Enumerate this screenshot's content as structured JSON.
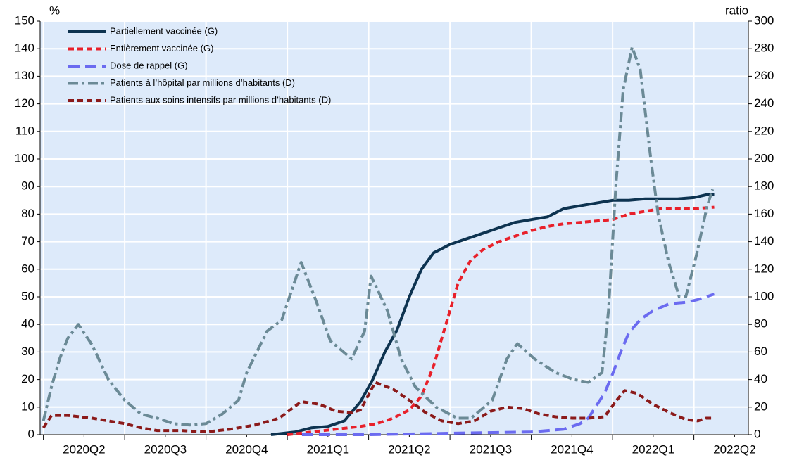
{
  "chart_data": {
    "type": "line",
    "y_label": "%",
    "y2_label": "ratio",
    "grid": true,
    "legend": "upper left",
    "xlim": [
      -0.04,
      8.67
    ],
    "xticks": [
      {
        "value": 0.5,
        "label": "2020Q2"
      },
      {
        "value": 1.5,
        "label": "2020Q3"
      },
      {
        "value": 2.5,
        "label": "2020Q4"
      },
      {
        "value": 3.5,
        "label": "2021Q1"
      },
      {
        "value": 4.5,
        "label": "2021Q2"
      },
      {
        "value": 5.5,
        "label": "2021Q3"
      },
      {
        "value": 6.5,
        "label": "2021Q4"
      },
      {
        "value": 7.5,
        "label": "2022Q1"
      },
      {
        "value": 8.5,
        "label": "2022Q2"
      }
    ],
    "ylim": [
      0,
      150
    ],
    "yticks": [
      0,
      10,
      20,
      30,
      40,
      50,
      60,
      70,
      80,
      90,
      100,
      110,
      120,
      130,
      140,
      150
    ],
    "y2lim": [
      0,
      300
    ],
    "y2ticks": [
      0,
      20,
      40,
      60,
      80,
      100,
      120,
      140,
      160,
      180,
      200,
      220,
      240,
      260,
      280,
      300
    ],
    "series": [
      {
        "name": "Partiellement vaccinée (G)",
        "color": "#0d3350",
        "dash": "solid",
        "axis": "y",
        "x": [
          2.8,
          3.1,
          3.3,
          3.5,
          3.7,
          3.9,
          4.05,
          4.2,
          4.35,
          4.5,
          4.65,
          4.8,
          5.0,
          5.2,
          5.4,
          5.6,
          5.8,
          6.0,
          6.2,
          6.4,
          6.6,
          6.8,
          7.0,
          7.2,
          7.4,
          7.6,
          7.8,
          8.0,
          8.15,
          8.25
        ],
        "values": [
          0,
          1,
          2.5,
          3,
          5,
          12,
          20,
          30,
          38,
          50,
          60,
          66,
          69,
          71,
          73,
          75,
          77,
          78,
          79,
          82,
          83,
          84,
          85,
          85,
          85.5,
          85.5,
          85.5,
          86,
          87,
          87
        ]
      },
      {
        "name": "Entièrement vaccinée (G)",
        "color": "#e8202a",
        "dash": "dash",
        "axis": "y",
        "x": [
          3.0,
          3.3,
          3.6,
          3.9,
          4.1,
          4.3,
          4.5,
          4.65,
          4.8,
          4.95,
          5.1,
          5.25,
          5.4,
          5.6,
          5.8,
          6.0,
          6.2,
          6.4,
          6.6,
          6.8,
          7.0,
          7.2,
          7.4,
          7.6,
          7.8,
          8.0,
          8.25
        ],
        "values": [
          0,
          1,
          2,
          3,
          4,
          6,
          9,
          14,
          25,
          40,
          55,
          63,
          67,
          70,
          72,
          74,
          75.5,
          76.5,
          77,
          77.5,
          78,
          80,
          81,
          82,
          82,
          82,
          82.5
        ]
      },
      {
        "name": "Dose de rappel (G)",
        "color": "#6b6bf0",
        "dash": "longdash",
        "axis": "y",
        "x": [
          3.18,
          4.0,
          5.0,
          6.0,
          6.4,
          6.6,
          6.7,
          6.9,
          7.0,
          7.1,
          7.2,
          7.35,
          7.5,
          7.7,
          7.9,
          8.05,
          8.25
        ],
        "values": [
          0,
          0,
          0.5,
          1,
          2,
          4,
          6,
          15,
          22,
          30,
          37,
          42,
          45,
          47.5,
          48,
          49,
          51
        ]
      },
      {
        "name": "Patients à l’hôpital par millions d’habitants (D)",
        "color": "#6b8a96",
        "dash": "dashdot",
        "axis": "y2",
        "x": [
          0,
          0.1,
          0.2,
          0.3,
          0.43,
          0.6,
          0.8,
          1.0,
          1.2,
          1.4,
          1.6,
          1.8,
          2.0,
          2.2,
          2.4,
          2.5,
          2.75,
          2.93,
          3.17,
          3.36,
          3.53,
          3.79,
          3.95,
          4.03,
          4.23,
          4.4,
          4.57,
          4.83,
          5.09,
          5.26,
          5.52,
          5.7,
          5.83,
          6.04,
          6.3,
          6.52,
          6.7,
          6.87,
          6.95,
          7.04,
          7.13,
          7.24,
          7.34,
          7.47,
          7.56,
          7.69,
          7.82,
          7.9,
          8.03,
          8.16,
          8.23
        ],
        "values": [
          10,
          35,
          55,
          70,
          80,
          65,
          40,
          25,
          15,
          12,
          8,
          7,
          8,
          15,
          25,
          45,
          75,
          83,
          125,
          96,
          68,
          55,
          75,
          115,
          90,
          55,
          35,
          20,
          12,
          12,
          25,
          55,
          66,
          55,
          45,
          40,
          38,
          45,
          90,
          180,
          250,
          281,
          265,
          200,
          160,
          125,
          100,
          100,
          130,
          165,
          178
        ]
      },
      {
        "name": "Patients aux soins intensifs par millions d’habitants (D)",
        "color": "#8b1a1a",
        "dash": "dash",
        "axis": "y2",
        "x": [
          0,
          0.1,
          0.3,
          0.6,
          0.8,
          1.0,
          1.2,
          1.4,
          1.7,
          2.0,
          2.3,
          2.6,
          2.9,
          3.17,
          3.4,
          3.6,
          3.8,
          3.9,
          4.08,
          4.3,
          4.5,
          4.7,
          4.9,
          5.1,
          5.3,
          5.5,
          5.7,
          5.9,
          6.1,
          6.3,
          6.5,
          6.7,
          6.9,
          7.05,
          7.15,
          7.3,
          7.5,
          7.7,
          7.9,
          8.05,
          8.15,
          8.25
        ],
        "values": [
          5,
          14,
          14,
          12,
          10,
          8,
          5,
          3,
          3,
          2,
          4,
          7,
          12,
          24,
          22,
          17,
          16,
          18,
          38,
          33,
          25,
          16,
          10,
          8,
          10,
          17,
          20,
          19,
          15,
          13,
          12,
          12,
          13,
          25,
          32,
          30,
          22,
          16,
          11,
          10,
          12,
          12
        ]
      }
    ]
  }
}
